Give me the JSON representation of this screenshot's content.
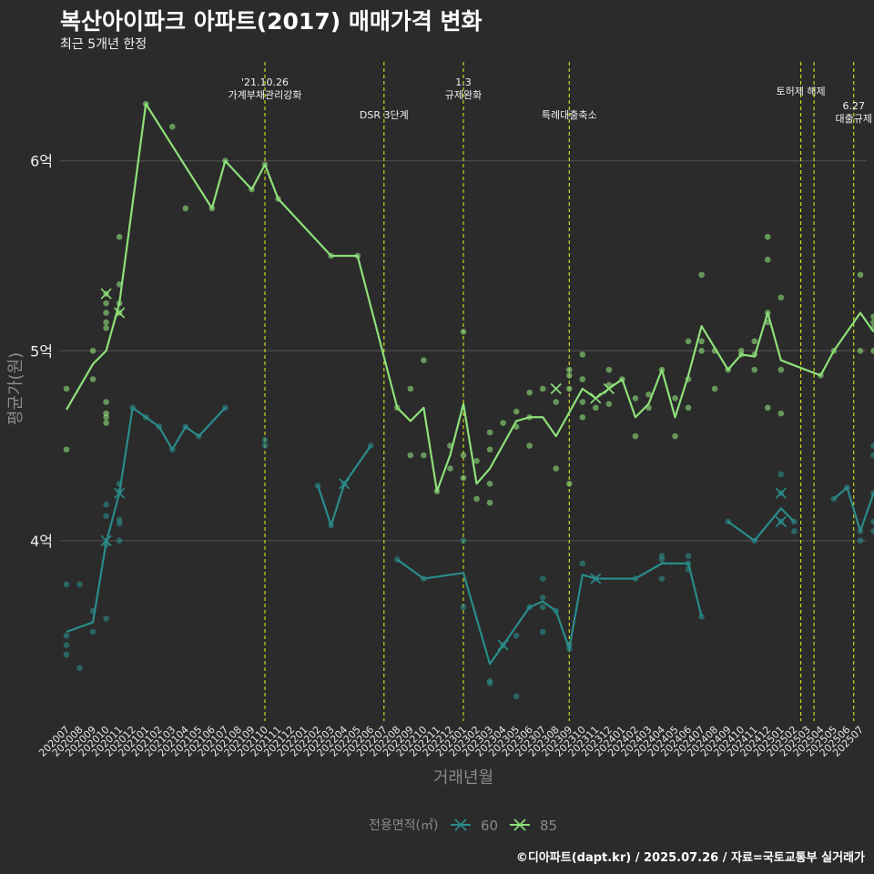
{
  "title": "복산아이파크 아파트(2017) 매매가격 변화",
  "subtitle": "최근 5개년 한정",
  "credit": "©디아파트(dapt.kr) / 2025.07.26 / 자료=국토교통부 실거래가",
  "chart_data": {
    "type": "line",
    "xlabel": "거래년월",
    "ylabel": "평균가(원)",
    "yticks": [
      {
        "value": 4.0,
        "label": "4억"
      },
      {
        "value": 5.0,
        "label": "5억"
      },
      {
        "value": 6.0,
        "label": "6억"
      }
    ],
    "ylim": [
      3.05,
      6.55
    ],
    "categories": [
      "202007",
      "202008",
      "202009",
      "202010",
      "202011",
      "202012",
      "202101",
      "202102",
      "202103",
      "202104",
      "202105",
      "202106",
      "202107",
      "202108",
      "202109",
      "202110",
      "202111",
      "202112",
      "202201",
      "202202",
      "202203",
      "202204",
      "202205",
      "202206",
      "202207",
      "202208",
      "202209",
      "202210",
      "202211",
      "202212",
      "202301",
      "202302",
      "202303",
      "202304",
      "202305",
      "202306",
      "202307",
      "202308",
      "202309",
      "202310",
      "202311",
      "202312",
      "202401",
      "202402",
      "202403",
      "202404",
      "202405",
      "202406",
      "202407",
      "202408",
      "202409",
      "202410",
      "202411",
      "202412",
      "202501",
      "202502",
      "202503",
      "202504",
      "202505",
      "202506",
      "202507"
    ],
    "legend": {
      "title": "전용면적(㎡)",
      "position": "bottom"
    },
    "grid": true,
    "series": [
      {
        "name": "60",
        "color": "#2a8c8a",
        "line": [
          [
            0,
            3.52
          ],
          [
            2,
            3.57
          ],
          [
            3,
            3.99
          ],
          [
            4,
            4.25
          ],
          [
            5,
            4.7
          ],
          [
            6,
            4.65
          ],
          [
            7,
            4.6
          ],
          [
            8,
            4.48
          ],
          [
            9,
            4.6
          ],
          [
            10,
            4.55
          ],
          [
            12,
            4.7
          ],
          null,
          [
            19,
            4.29
          ],
          [
            20,
            4.08
          ],
          [
            21,
            4.3
          ],
          [
            23,
            4.5
          ],
          null,
          [
            25,
            3.9
          ],
          [
            27,
            3.8
          ],
          [
            30,
            3.83
          ],
          [
            32,
            3.35
          ],
          [
            33,
            3.45
          ],
          [
            35,
            3.65
          ],
          [
            36,
            3.68
          ],
          [
            37,
            3.63
          ],
          [
            38,
            3.43
          ],
          [
            39,
            3.82
          ],
          [
            40,
            3.8
          ],
          [
            43,
            3.8
          ],
          [
            45,
            3.88
          ],
          [
            47,
            3.88
          ],
          [
            48,
            3.6
          ],
          null,
          [
            50,
            4.1
          ],
          [
            52,
            4.0
          ],
          [
            54,
            4.17
          ],
          [
            55,
            4.1
          ],
          null,
          [
            58,
            4.22
          ],
          [
            59,
            4.28
          ],
          [
            60,
            4.05
          ],
          [
            61,
            4.25
          ]
        ],
        "points": [
          [
            0,
            3.77
          ],
          [
            0,
            3.5
          ],
          [
            0,
            3.45
          ],
          [
            0,
            3.4
          ],
          [
            1,
            3.77
          ],
          [
            1,
            3.33
          ],
          [
            2,
            3.63
          ],
          [
            2,
            3.52
          ],
          [
            3,
            4.19
          ],
          [
            3,
            4.13
          ],
          [
            3,
            3.98
          ],
          [
            3,
            3.59
          ],
          [
            4,
            4.3
          ],
          [
            4,
            4.26
          ],
          [
            4,
            4.11
          ],
          [
            4,
            4.09
          ],
          [
            4,
            4.0
          ],
          [
            5,
            4.7
          ],
          [
            6,
            4.65
          ],
          [
            7,
            4.6
          ],
          [
            8,
            4.48
          ],
          [
            9,
            4.6
          ],
          [
            10,
            4.55
          ],
          [
            12,
            4.7
          ],
          [
            15,
            4.53
          ],
          [
            15,
            4.5
          ],
          [
            19,
            4.29
          ],
          [
            20,
            4.08
          ],
          [
            21,
            4.3
          ],
          [
            23,
            4.5
          ],
          [
            25,
            3.9
          ],
          [
            27,
            3.8
          ],
          [
            30,
            4.0
          ],
          [
            30,
            3.65
          ],
          [
            32,
            3.25
          ],
          [
            32,
            3.26
          ],
          [
            33,
            3.45
          ],
          [
            34,
            3.18
          ],
          [
            34,
            3.5
          ],
          [
            35,
            3.65
          ],
          [
            36,
            3.8
          ],
          [
            36,
            3.7
          ],
          [
            36,
            3.65
          ],
          [
            36,
            3.52
          ],
          [
            37,
            3.63
          ],
          [
            38,
            3.43
          ],
          [
            38,
            3.45
          ],
          [
            39,
            3.88
          ],
          [
            40,
            3.8
          ],
          [
            43,
            3.8
          ],
          [
            45,
            3.92
          ],
          [
            45,
            3.9
          ],
          [
            45,
            3.8
          ],
          [
            47,
            3.92
          ],
          [
            47,
            3.88
          ],
          [
            47,
            3.85
          ],
          [
            48,
            3.6
          ],
          [
            50,
            4.1
          ],
          [
            52,
            4.0
          ],
          [
            54,
            4.35
          ],
          [
            54,
            4.25
          ],
          [
            54,
            4.1
          ],
          [
            55,
            4.1
          ],
          [
            55,
            4.05
          ],
          [
            58,
            4.22
          ],
          [
            59,
            4.28
          ],
          [
            60,
            4.05
          ],
          [
            60,
            4.0
          ],
          [
            61,
            4.5
          ],
          [
            61,
            4.45
          ],
          [
            61,
            4.25
          ],
          [
            61,
            4.1
          ],
          [
            61,
            4.05
          ]
        ],
        "crosses": [
          [
            3,
            4.0
          ],
          [
            4,
            4.25
          ],
          [
            21,
            4.3
          ],
          [
            33,
            3.45
          ],
          [
            40,
            3.8
          ],
          [
            54,
            4.25
          ],
          [
            54,
            4.1
          ]
        ]
      },
      {
        "name": "85",
        "color": "#8ee07a",
        "line": [
          [
            0,
            4.69
          ],
          [
            2,
            4.93
          ],
          [
            3,
            5.0
          ],
          [
            4,
            5.25
          ],
          [
            6,
            6.3
          ],
          [
            11,
            5.75
          ],
          [
            12,
            6.0
          ],
          [
            14,
            5.85
          ],
          [
            15,
            5.98
          ],
          [
            16,
            5.8
          ],
          [
            20,
            5.5
          ],
          [
            22,
            5.5
          ],
          [
            25,
            4.7
          ],
          [
            26,
            4.63
          ],
          [
            27,
            4.7
          ],
          [
            28,
            4.26
          ],
          [
            29,
            4.45
          ],
          [
            30,
            4.72
          ],
          [
            31,
            4.3
          ],
          [
            32,
            4.38
          ],
          [
            34,
            4.63
          ],
          [
            35,
            4.65
          ],
          [
            36,
            4.65
          ],
          [
            37,
            4.55
          ],
          [
            39,
            4.8
          ],
          [
            40,
            4.75
          ],
          [
            41,
            4.8
          ],
          [
            42,
            4.85
          ],
          [
            43,
            4.65
          ],
          [
            44,
            4.72
          ],
          [
            45,
            4.9
          ],
          [
            46,
            4.65
          ],
          [
            47,
            4.87
          ],
          [
            48,
            5.13
          ],
          [
            50,
            4.9
          ],
          [
            51,
            4.98
          ],
          [
            52,
            4.97
          ],
          [
            53,
            5.2
          ],
          [
            54,
            4.95
          ],
          [
            57,
            4.87
          ],
          [
            58,
            5.0
          ],
          [
            60,
            5.2
          ],
          [
            61,
            5.1
          ]
        ],
        "points": [
          [
            0,
            4.8
          ],
          [
            0,
            4.48
          ],
          [
            2,
            5.0
          ],
          [
            2,
            4.85
          ],
          [
            3,
            5.3
          ],
          [
            3,
            5.25
          ],
          [
            3,
            5.2
          ],
          [
            3,
            5.15
          ],
          [
            3,
            5.12
          ],
          [
            3,
            4.73
          ],
          [
            3,
            4.67
          ],
          [
            3,
            4.65
          ],
          [
            3,
            4.62
          ],
          [
            4,
            5.6
          ],
          [
            4,
            5.35
          ],
          [
            4,
            5.25
          ],
          [
            4,
            5.2
          ],
          [
            6,
            6.3
          ],
          [
            8,
            6.18
          ],
          [
            9,
            5.75
          ],
          [
            11,
            5.75
          ],
          [
            12,
            6.0
          ],
          [
            14,
            5.85
          ],
          [
            15,
            5.98
          ],
          [
            16,
            5.8
          ],
          [
            20,
            5.5
          ],
          [
            22,
            5.5
          ],
          [
            25,
            4.7
          ],
          [
            26,
            4.8
          ],
          [
            26,
            4.45
          ],
          [
            27,
            4.95
          ],
          [
            27,
            4.45
          ],
          [
            28,
            4.26
          ],
          [
            29,
            4.5
          ],
          [
            29,
            4.38
          ],
          [
            30,
            5.1
          ],
          [
            30,
            4.45
          ],
          [
            30,
            4.33
          ],
          [
            31,
            4.42
          ],
          [
            31,
            4.22
          ],
          [
            32,
            4.57
          ],
          [
            32,
            4.48
          ],
          [
            32,
            4.3
          ],
          [
            32,
            4.2
          ],
          [
            33,
            4.62
          ],
          [
            34,
            4.68
          ],
          [
            34,
            4.6
          ],
          [
            35,
            4.78
          ],
          [
            35,
            4.65
          ],
          [
            35,
            4.5
          ],
          [
            36,
            4.8
          ],
          [
            37,
            4.73
          ],
          [
            37,
            4.38
          ],
          [
            38,
            4.9
          ],
          [
            38,
            4.87
          ],
          [
            38,
            4.8
          ],
          [
            38,
            4.3
          ],
          [
            39,
            4.98
          ],
          [
            39,
            4.85
          ],
          [
            39,
            4.73
          ],
          [
            39,
            4.65
          ],
          [
            40,
            4.7
          ],
          [
            41,
            4.9
          ],
          [
            41,
            4.82
          ],
          [
            41,
            4.72
          ],
          [
            42,
            4.85
          ],
          [
            43,
            4.75
          ],
          [
            43,
            4.55
          ],
          [
            44,
            4.77
          ],
          [
            44,
            4.7
          ],
          [
            45,
            4.9
          ],
          [
            46,
            4.75
          ],
          [
            46,
            4.55
          ],
          [
            47,
            5.05
          ],
          [
            47,
            4.85
          ],
          [
            47,
            4.7
          ],
          [
            48,
            5.4
          ],
          [
            48,
            5.05
          ],
          [
            48,
            5.0
          ],
          [
            49,
            5.0
          ],
          [
            49,
            4.8
          ],
          [
            50,
            4.9
          ],
          [
            51,
            5.0
          ],
          [
            51,
            4.98
          ],
          [
            52,
            5.05
          ],
          [
            52,
            4.98
          ],
          [
            52,
            4.9
          ],
          [
            53,
            5.6
          ],
          [
            53,
            5.48
          ],
          [
            53,
            5.2
          ],
          [
            53,
            5.15
          ],
          [
            53,
            4.7
          ],
          [
            54,
            5.28
          ],
          [
            54,
            4.9
          ],
          [
            54,
            4.67
          ],
          [
            57,
            4.87
          ],
          [
            58,
            5.0
          ],
          [
            60,
            5.4
          ],
          [
            60,
            5.0
          ],
          [
            61,
            5.18
          ],
          [
            61,
            5.15
          ],
          [
            61,
            5.12
          ],
          [
            61,
            5.0
          ]
        ],
        "crosses": [
          [
            3,
            5.3
          ],
          [
            4,
            5.2
          ],
          [
            37,
            4.8
          ],
          [
            40,
            4.75
          ],
          [
            41,
            4.8
          ]
        ]
      }
    ],
    "annotations": [
      {
        "index": 15.0,
        "lines": [
          "'21.10.26",
          "가계부채관리강화"
        ],
        "row": 0
      },
      {
        "index": 24.0,
        "lines": [
          "DSR 3단계"
        ],
        "row": 2
      },
      {
        "index": 30.0,
        "lines": [
          "1.3",
          "규제완화"
        ],
        "row": 0
      },
      {
        "index": 38.0,
        "lines": [
          "특례대출축소"
        ],
        "row": 2
      },
      {
        "index": 55.5,
        "lines": [
          "토허제 해제"
        ],
        "row": 1
      },
      {
        "index": 56.5,
        "lines": [],
        "row": 1
      },
      {
        "index": 59.5,
        "lines": [
          "6.27",
          "대출규제"
        ],
        "row": 3
      }
    ]
  }
}
